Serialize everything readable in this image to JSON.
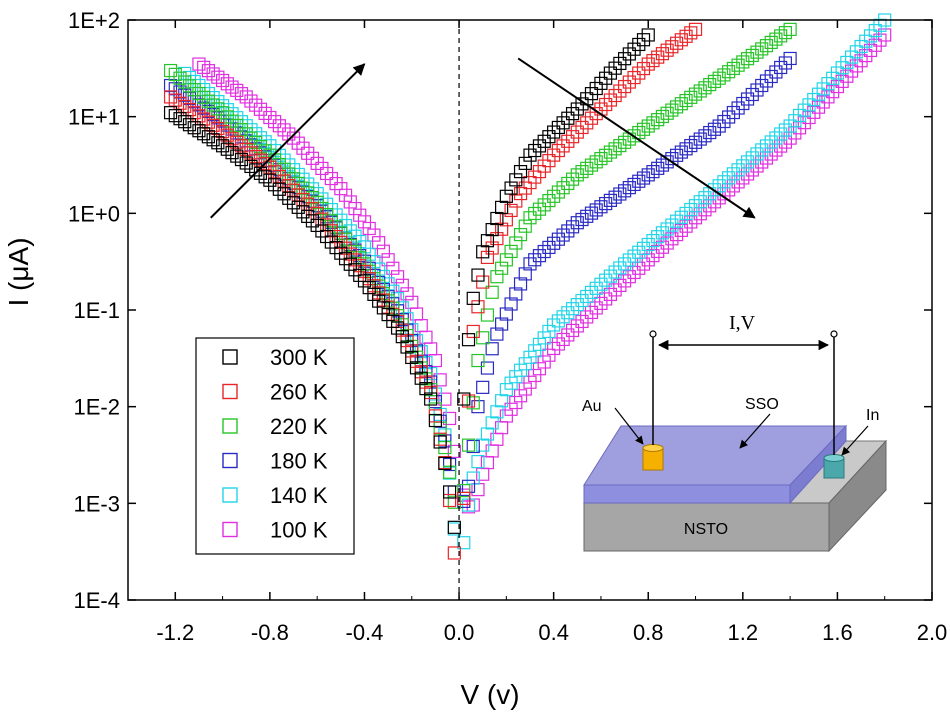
{
  "chart_data": {
    "type": "scatter",
    "title": "",
    "xlabel": "V (v)",
    "ylabel": "I (μA)",
    "xlim": [
      -1.4,
      2.0
    ],
    "ylim": [
      0.0001,
      100
    ],
    "yscale": "log",
    "x_ticks": [
      "-1.2",
      "-0.8",
      "-0.4",
      "0.0",
      "0.4",
      "0.8",
      "1.2",
      "1.6",
      "2.0"
    ],
    "y_ticks": [
      "1E-4",
      "1E-3",
      "1E-2",
      "1E-1",
      "1E+0",
      "1E+1",
      "1E+2"
    ],
    "grid": false,
    "legend_position": "bottom-left",
    "marker": "open-square",
    "series": [
      {
        "name": "300 K",
        "color": "#000000",
        "x_min": -1.22,
        "x_max": 0.8,
        "neg": [
          [
            -1.22,
            11
          ],
          [
            -1.0,
            5
          ],
          [
            -0.8,
            2.2
          ],
          [
            -0.6,
            0.75
          ],
          [
            -0.4,
            0.2
          ],
          [
            -0.25,
            0.06
          ],
          [
            -0.12,
            0.012
          ],
          [
            -0.05,
            0.002
          ],
          [
            -0.005,
            0.0003
          ]
        ],
        "pos": [
          [
            0.005,
            0.0004
          ],
          [
            0.02,
            0.012
          ],
          [
            0.05,
            0.1
          ],
          [
            0.1,
            0.4
          ],
          [
            0.2,
            1.5
          ],
          [
            0.3,
            4
          ],
          [
            0.5,
            12
          ],
          [
            0.65,
            30
          ],
          [
            0.8,
            70
          ]
        ]
      },
      {
        "name": "260 K",
        "color": "#e8262a",
        "x_min": -1.22,
        "x_max": 1.0,
        "neg": [
          [
            -1.22,
            16
          ],
          [
            -1.0,
            7
          ],
          [
            -0.8,
            3
          ],
          [
            -0.6,
            1.0
          ],
          [
            -0.4,
            0.25
          ],
          [
            -0.25,
            0.07
          ],
          [
            -0.12,
            0.014
          ],
          [
            -0.05,
            0.002
          ],
          [
            -0.005,
            0.00012
          ]
        ],
        "pos": [
          [
            0.005,
            0.00012
          ],
          [
            0.03,
            0.005
          ],
          [
            0.06,
            0.06
          ],
          [
            0.12,
            0.35
          ],
          [
            0.25,
            1.5
          ],
          [
            0.4,
            4
          ],
          [
            0.6,
            12
          ],
          [
            0.8,
            35
          ],
          [
            1.0,
            80
          ]
        ]
      },
      {
        "name": "220 K",
        "color": "#27c427",
        "x_min": -1.22,
        "x_max": 1.4,
        "neg": [
          [
            -1.22,
            30
          ],
          [
            -1.0,
            11
          ],
          [
            -0.8,
            4
          ],
          [
            -0.6,
            1.3
          ],
          [
            -0.4,
            0.3
          ],
          [
            -0.25,
            0.08
          ],
          [
            -0.12,
            0.015
          ],
          [
            -0.05,
            0.003
          ],
          [
            -0.005,
            0.0006
          ]
        ],
        "pos": [
          [
            0.005,
            0.0006
          ],
          [
            0.04,
            0.004
          ],
          [
            0.08,
            0.03
          ],
          [
            0.15,
            0.2
          ],
          [
            0.3,
            0.9
          ],
          [
            0.5,
            2.5
          ],
          [
            0.8,
            8
          ],
          [
            1.1,
            25
          ],
          [
            1.4,
            80
          ]
        ]
      },
      {
        "name": "180 K",
        "color": "#2a2ac4",
        "x_min": -1.22,
        "x_max": 1.4,
        "neg": [
          [
            -1.22,
            21
          ],
          [
            -1.0,
            9
          ],
          [
            -0.8,
            3.5
          ],
          [
            -0.6,
            1.2
          ],
          [
            -0.4,
            0.32
          ],
          [
            -0.25,
            0.09
          ],
          [
            -0.12,
            0.018
          ],
          [
            -0.05,
            0.0035
          ],
          [
            -0.005,
            0.0008
          ]
        ],
        "pos": [
          [
            0.005,
            0.0008
          ],
          [
            0.04,
            0.0015
          ],
          [
            0.08,
            0.01
          ],
          [
            0.15,
            0.05
          ],
          [
            0.3,
            0.3
          ],
          [
            0.5,
            0.8
          ],
          [
            0.8,
            2.5
          ],
          [
            1.1,
            8
          ],
          [
            1.4,
            40
          ]
        ]
      },
      {
        "name": "140 K",
        "color": "#22d4e8",
        "x_min": -1.16,
        "x_max": 1.8,
        "neg": [
          [
            -1.16,
            28
          ],
          [
            -1.0,
            13
          ],
          [
            -0.8,
            5
          ],
          [
            -0.6,
            1.6
          ],
          [
            -0.4,
            0.45
          ],
          [
            -0.25,
            0.12
          ],
          [
            -0.12,
            0.022
          ],
          [
            -0.05,
            0.004
          ],
          [
            -0.005,
            0.0002
          ]
        ],
        "pos": [
          [
            0.005,
            0.0002
          ],
          [
            0.05,
            0.0015
          ],
          [
            0.1,
            0.004
          ],
          [
            0.2,
            0.015
          ],
          [
            0.4,
            0.07
          ],
          [
            0.7,
            0.3
          ],
          [
            1.0,
            1.2
          ],
          [
            1.4,
            8
          ],
          [
            1.8,
            100
          ]
        ]
      },
      {
        "name": "100 K",
        "color": "#e02ee0",
        "x_min": -1.1,
        "x_max": 1.8,
        "neg": [
          [
            -1.1,
            35
          ],
          [
            -0.9,
            16
          ],
          [
            -0.7,
            6
          ],
          [
            -0.5,
            1.8
          ],
          [
            -0.35,
            0.55
          ],
          [
            -0.2,
            0.12
          ],
          [
            -0.1,
            0.03
          ],
          [
            -0.03,
            0.006
          ],
          [
            -0.005,
            0.0015
          ]
        ],
        "pos": [
          [
            0.005,
            0.0015
          ],
          [
            0.05,
            0.0008
          ],
          [
            0.1,
            0.002
          ],
          [
            0.2,
            0.008
          ],
          [
            0.4,
            0.04
          ],
          [
            0.7,
            0.2
          ],
          [
            1.0,
            0.9
          ],
          [
            1.4,
            6
          ],
          [
            1.8,
            70
          ]
        ]
      }
    ],
    "annotations": {
      "arrow_left": {
        "from": [
          -1.05,
          0.9
        ],
        "to": [
          -0.4,
          35
        ]
      },
      "arrow_right": {
        "from": [
          0.25,
          40
        ],
        "to": [
          1.25,
          0.9
        ]
      },
      "zero_line_x": 0.0
    },
    "inset": {
      "top_label": "I,V",
      "au_label": "Au",
      "sso_label": "SSO",
      "in_label": "In",
      "substrate_label": "NSTO",
      "colors": {
        "substrate": "#a6a6a6",
        "film": "#9f9fe0",
        "au_contact": "#f5b000",
        "in_contact": "#4aa8aa"
      }
    }
  }
}
